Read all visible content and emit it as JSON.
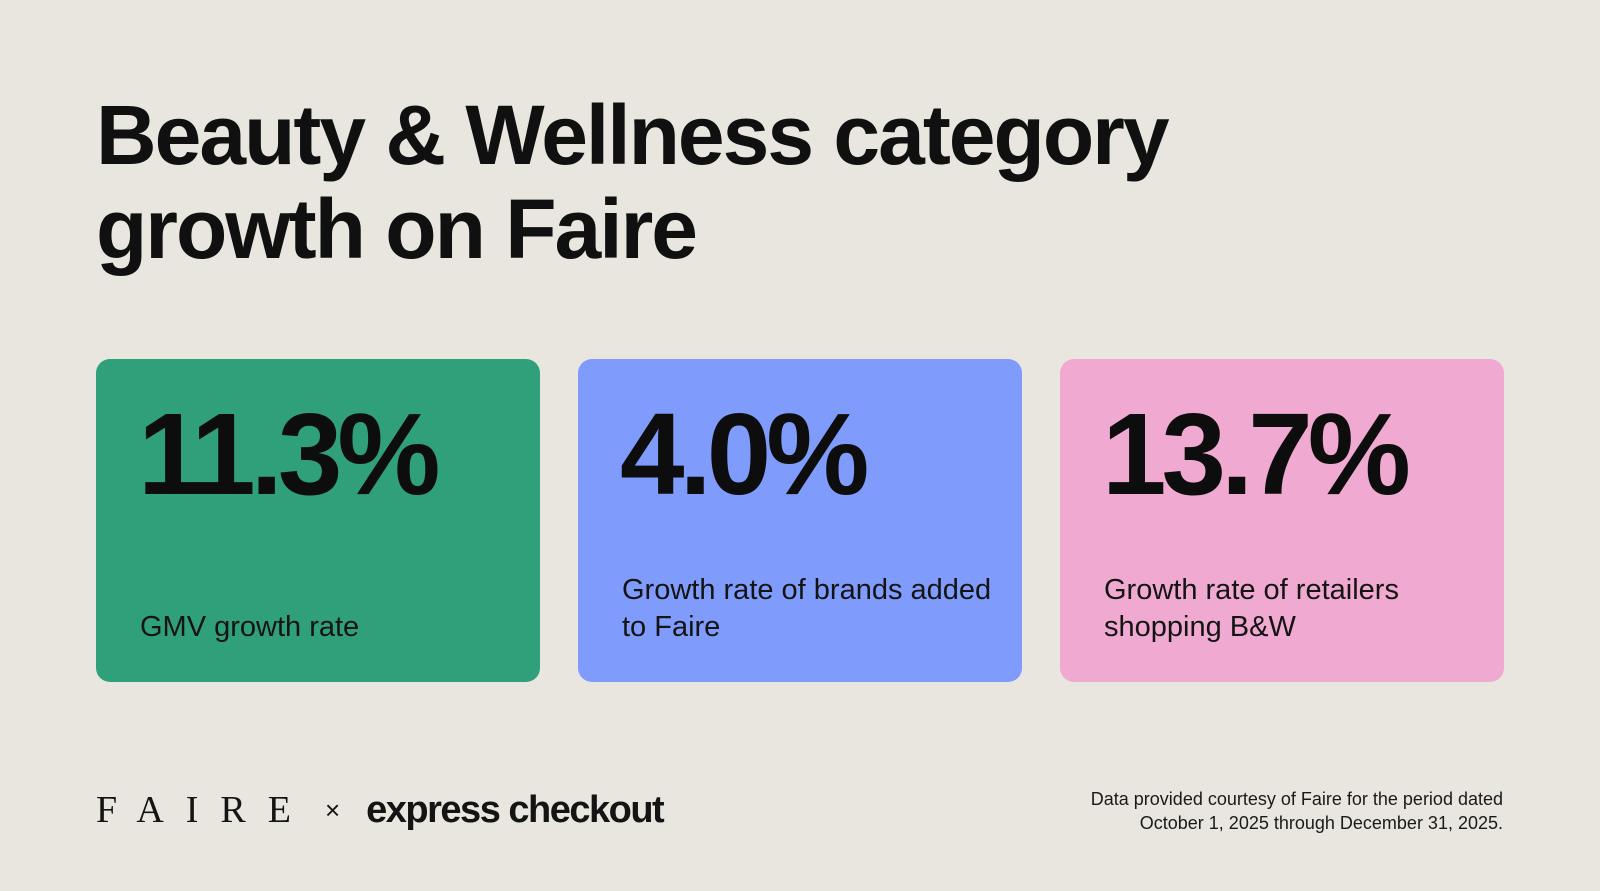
{
  "title": {
    "line1": "Beauty & Wellness category",
    "line2": "growth on Faire"
  },
  "cards": [
    {
      "value": "11.3%",
      "label": "GMV growth rate",
      "color": "#30a07a"
    },
    {
      "value": "4.0%",
      "label": "Growth rate of brands added to Faire",
      "color": "#7f9bfb"
    },
    {
      "value": "13.7%",
      "label": "Growth rate of retailers shopping B&W",
      "color": "#f0aad1"
    }
  ],
  "footer": {
    "logo_faire": "FAIRE",
    "separator": "×",
    "logo_partner": "express checkout",
    "note_line1": "Data provided courtesy of Faire for the period dated",
    "note_line2": "October 1, 2025 through December 31, 2025."
  },
  "colors": {
    "background": "#e9e6df",
    "text": "#111111"
  }
}
